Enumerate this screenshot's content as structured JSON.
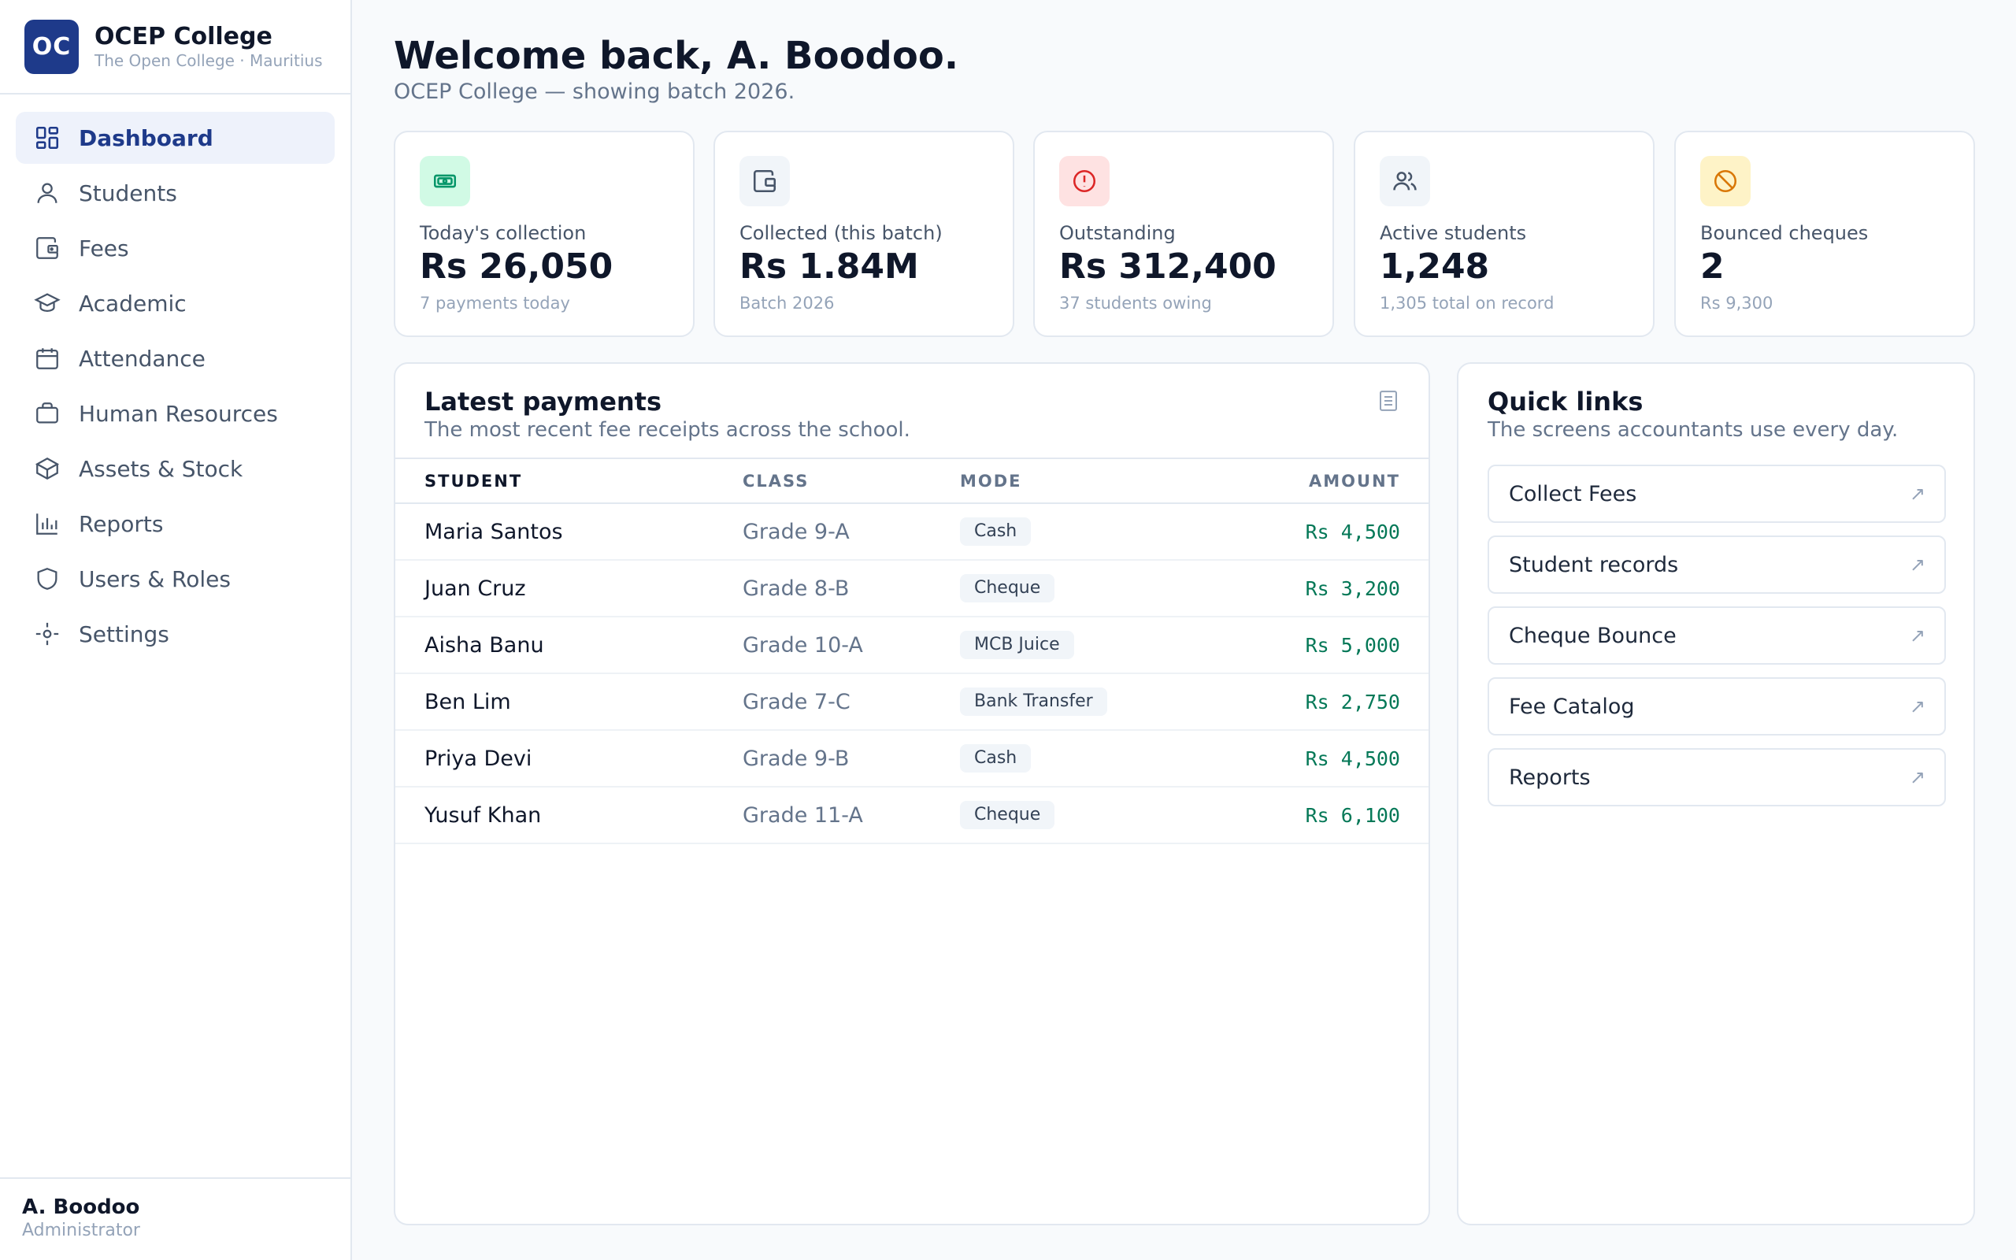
{
  "brand": {
    "logo": "OC",
    "name": "OCEP College",
    "subtitle": "The Open College · Mauritius"
  },
  "nav": [
    {
      "label": "Dashboard",
      "icon": "dashboard-icon",
      "active": true
    },
    {
      "label": "Students",
      "icon": "user-icon"
    },
    {
      "label": "Fees",
      "icon": "wallet-icon"
    },
    {
      "label": "Academic",
      "icon": "graduation-cap-icon"
    },
    {
      "label": "Attendance",
      "icon": "calendar-icon"
    },
    {
      "label": "Human Resources",
      "icon": "briefcase-icon"
    },
    {
      "label": "Assets & Stock",
      "icon": "box-icon"
    },
    {
      "label": "Reports",
      "icon": "bar-chart-icon"
    },
    {
      "label": "Users & Roles",
      "icon": "shield-icon"
    },
    {
      "label": "Settings",
      "icon": "settings-icon"
    }
  ],
  "user": {
    "name": "A. Boodoo",
    "role": "Administrator"
  },
  "header": {
    "welcome": "Welcome back, A. Boodoo.",
    "subtitle": "OCEP College — showing batch 2026."
  },
  "stats": [
    {
      "label": "Today's collection",
      "value": "Rs 26,050",
      "sub": "7 payments today",
      "icon": "banknote-icon",
      "color": "#059669",
      "bg": "#d1fae5"
    },
    {
      "label": "Collected (this batch)",
      "value": "Rs 1.84M",
      "sub": "Batch 2026",
      "icon": "wallet-icon",
      "color": "#475569",
      "bg": "#f1f5f9"
    },
    {
      "label": "Outstanding",
      "value": "Rs 312,400",
      "sub": "37 students owing",
      "icon": "alert-circle-icon",
      "color": "#dc2626",
      "bg": "#fee2e2"
    },
    {
      "label": "Active students",
      "value": "1,248",
      "sub": "1,305 total on record",
      "icon": "users-icon",
      "color": "#475569",
      "bg": "#f1f5f9"
    },
    {
      "label": "Bounced cheques",
      "value": "2",
      "sub": "Rs 9,300",
      "icon": "ban-icon",
      "color": "#d97706",
      "bg": "#fef3c7"
    }
  ],
  "payments": {
    "title": "Latest payments",
    "subtitle": "The most recent fee receipts across the school.",
    "columns": {
      "student": "STUDENT",
      "class": "CLASS",
      "mode": "MODE",
      "amount": "AMOUNT"
    },
    "rows": [
      {
        "student": "Maria Santos",
        "class": "Grade 9-A",
        "mode": "Cash",
        "amount": "Rs 4,500"
      },
      {
        "student": "Juan Cruz",
        "class": "Grade 8-B",
        "mode": "Cheque",
        "amount": "Rs 3,200"
      },
      {
        "student": "Aisha Banu",
        "class": "Grade 10-A",
        "mode": "MCB Juice",
        "amount": "Rs 5,000"
      },
      {
        "student": "Ben Lim",
        "class": "Grade 7-C",
        "mode": "Bank Transfer",
        "amount": "Rs 2,750"
      },
      {
        "student": "Priya Devi",
        "class": "Grade 9-B",
        "mode": "Cash",
        "amount": "Rs 4,500"
      },
      {
        "student": "Yusuf Khan",
        "class": "Grade 11-A",
        "mode": "Cheque",
        "amount": "Rs 6,100"
      }
    ]
  },
  "quick_links": {
    "title": "Quick links",
    "subtitle": "The screens accountants use every day.",
    "arrow": "↗",
    "items": [
      "Collect Fees",
      "Student records",
      "Cheque Bounce",
      "Fee Catalog",
      "Reports"
    ]
  }
}
